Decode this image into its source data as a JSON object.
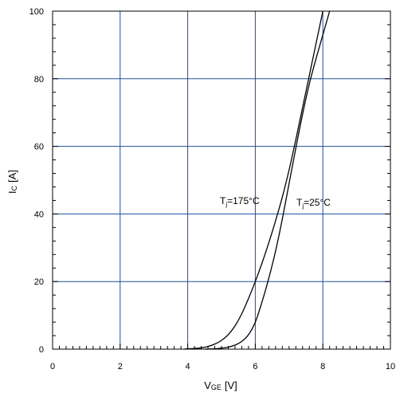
{
  "chart_data": {
    "type": "line",
    "xlabel_main": "V",
    "xlabel_sub": "GE",
    "xlabel_unit": "[V]",
    "ylabel_main": "I",
    "ylabel_sub": "C",
    "ylabel_unit": "[A]",
    "xlim": [
      0,
      10
    ],
    "ylim": [
      0,
      100
    ],
    "x_ticks": [
      "0",
      "2",
      "4",
      "6",
      "8",
      "10"
    ],
    "y_ticks": [
      "0",
      "20",
      "40",
      "60",
      "80",
      "100"
    ],
    "grid": true,
    "grid_color": "#1f4e9c",
    "line_color": "#000000",
    "series": [
      {
        "name": "Tj=175°C",
        "label_main": "T",
        "label_sub": "j",
        "label_rest": "=175°C",
        "x": [
          3.9,
          4.0,
          4.2,
          4.4,
          4.6,
          4.8,
          5.0,
          5.2,
          5.4,
          5.6,
          5.8,
          6.0,
          6.2,
          6.4,
          6.6,
          6.8,
          7.0,
          7.2,
          7.4,
          7.6,
          7.8,
          8.0
        ],
        "y": [
          0,
          0.1,
          0.2,
          0.4,
          0.8,
          1.5,
          2.6,
          4.3,
          6.9,
          10.5,
          15.0,
          20.0,
          25.5,
          31.5,
          38.0,
          45.0,
          53.0,
          62.0,
          71.5,
          81.0,
          90.5,
          100.0
        ]
      },
      {
        "name": "Tj=25°C",
        "label_main": "T",
        "label_sub": "j",
        "label_rest": "=25°C",
        "x": [
          4.5,
          4.8,
          5.0,
          5.2,
          5.4,
          5.6,
          5.8,
          6.0,
          6.2,
          6.4,
          6.6,
          6.8,
          7.0,
          7.2,
          7.4,
          7.6,
          7.8,
          8.0,
          8.2
        ],
        "y": [
          0,
          0.1,
          0.3,
          0.6,
          1.2,
          2.3,
          4.3,
          8.0,
          14.0,
          21.0,
          29.0,
          38.5,
          49.0,
          59.5,
          69.5,
          78.5,
          86.0,
          93.0,
          100.0
        ]
      }
    ]
  }
}
